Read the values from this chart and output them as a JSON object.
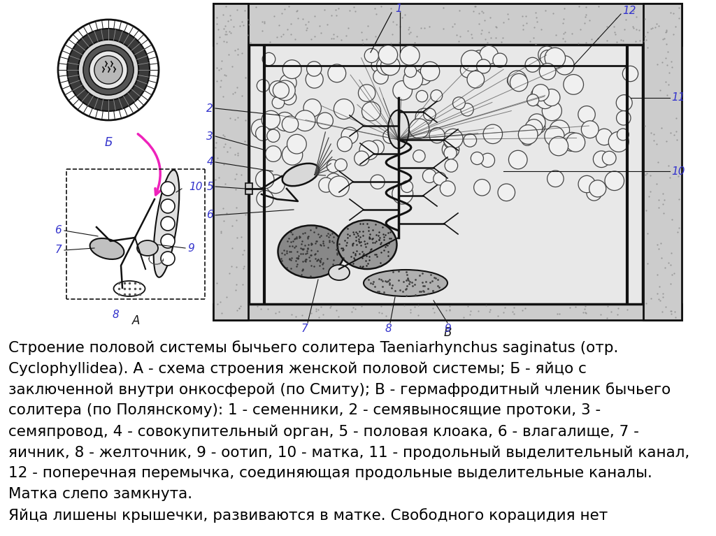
{
  "background_color": "#ffffff",
  "text_lines": [
    "Строение половой системы бычьего солитера Taeniarhynchus saginatus (отр.",
    "Cyclophyllidea). А - схема строения женской половой системы; Б - яйцо с",
    "заключенной внутри онкосферой (по Смиту); В - гермафродитный членик бычьего",
    "солитера (по Полянскому): 1 - семенники, 2 - семявыносящие протоки, 3 -",
    "семяпровод, 4 - совокупительный орган, 5 - половая клоака, 6 - влагалище, 7 -",
    "яичник, 8 - желточник, 9 - оотип, 10 - матка, 11 - продольный выделительный канал,",
    "12 - поперечная перемычка, соединяющая продольные выделительные каналы.",
    "Матка слепо замкнута.",
    "Яйца лишены крышечки, развиваются в матке. Свободного корацидия нет"
  ],
  "figsize": [
    10.24,
    7.67
  ],
  "dpi": 100,
  "label_color": "#3333cc",
  "line_color": "#111111",
  "text_fontsize": 15.5,
  "label_fontsize": 12
}
